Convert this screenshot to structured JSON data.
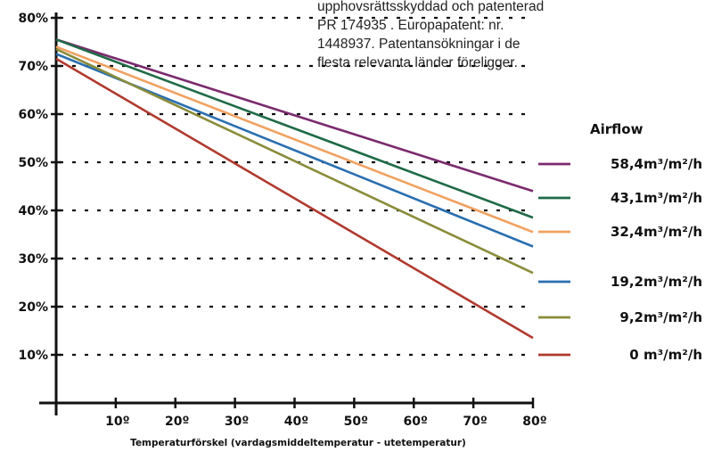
{
  "note": {
    "lines": [
      "upphovsrättsskyddad och patenterad",
      "PR 174935 . Europapatent:  nr.",
      "1448937. Patentansökningar i de",
      "flesta relevanta länder föreligger."
    ]
  },
  "colors": {
    "background": "#ffffff",
    "axis": "#111111",
    "grid": "#111111"
  },
  "chart_data": {
    "type": "line",
    "xlabel": "Temperaturförskel (vardagsmiddeltemperatur - utetemperatur)",
    "ylabel": "",
    "xlim": [
      0,
      80
    ],
    "ylim": [
      0,
      80
    ],
    "x_ticks": [
      10,
      20,
      30,
      40,
      50,
      60,
      70,
      80
    ],
    "x_tick_labels": [
      "10º",
      "20º",
      "30º",
      "40º",
      "50º",
      "60º",
      "70º",
      "80º"
    ],
    "y_ticks": [
      10,
      20,
      30,
      40,
      50,
      60,
      70,
      80
    ],
    "y_tick_labels": [
      "10%",
      "20%",
      "30%",
      "40%",
      "50%",
      "60%",
      "70%",
      "80%"
    ],
    "grid": "dotted horizontal",
    "legend": {
      "title": "Airflow",
      "placement": "right"
    },
    "series": [
      {
        "name": "58,4m³/m²/h",
        "color": "#7b2a6e",
        "x": [
          0,
          80
        ],
        "y": [
          75.5,
          44
        ]
      },
      {
        "name": "43,1m³/m²/h",
        "color": "#1f6b47",
        "x": [
          0,
          80
        ],
        "y": [
          75.5,
          38.5
        ]
      },
      {
        "name": "32,4m³/m²/h",
        "color": "#f0a160",
        "x": [
          0,
          80
        ],
        "y": [
          74,
          35.5
        ]
      },
      {
        "name": "19,2m³/m²/h",
        "color": "#2a6fb0",
        "x": [
          0,
          80
        ],
        "y": [
          72.5,
          32.5
        ]
      },
      {
        "name": "9,2m³/m²/h",
        "color": "#8a8c3a",
        "x": [
          0,
          80
        ],
        "y": [
          73.5,
          27
        ]
      },
      {
        "name": "0 m³/m²/h",
        "color": "#b03a2e",
        "x": [
          0,
          80
        ],
        "y": [
          71.5,
          13.5
        ]
      }
    ]
  }
}
